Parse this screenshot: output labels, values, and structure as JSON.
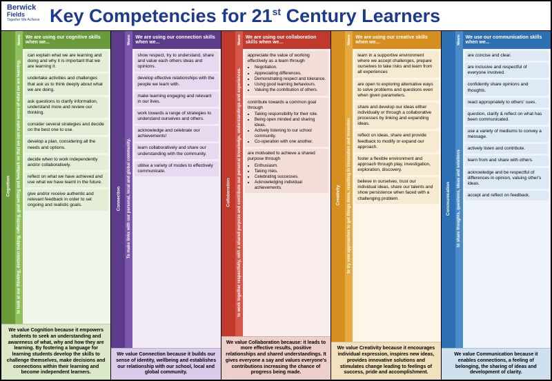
{
  "logo": {
    "line1": "Berwick",
    "line2": "Fields",
    "tag": "Together We Achieve"
  },
  "title_pre": "Key Competencies for 21",
  "title_sup": "st",
  "title_post": " Century Learners",
  "means_label": "Means",
  "competencies": [
    {
      "name": "Cognition",
      "colors": {
        "header": "#6a9a3a",
        "strip": "#8fc15a",
        "body": "#f1f6ea",
        "item": "#e4eed7",
        "footer": "#dce9c8",
        "text": "#ffffff"
      },
      "using": "We are using our cognitive skills when we...",
      "side": "to look at our thinking, decision making, reflecting, goal setting and feedback so that we can make sense of what we are learning.",
      "items": [
        {
          "text": "can explain what we are learning and doing and why it is important that we are learning it."
        },
        {
          "text": "undertake activities and challenges that ask us to think deeply about what we are doing."
        },
        {
          "text": "ask questions to clarify information, understand more and review our thinking."
        },
        {
          "text": "consider several strategies and decide on the best one to use."
        },
        {
          "text": "develop a plan, considering all the needs and options."
        },
        {
          "text": "decide when to work independently and/or collaboratively."
        },
        {
          "text": "reflect on what we have achieved and use what we have learnt in the future."
        },
        {
          "text": "give and/or receive authentic and relevant feedback in order to set ongoing and realistic goals."
        }
      ],
      "footer": "We value Cognition because it empowers students to seek an understanding and awareness of what, why and how they are learning. By fostering a language for learning students develop the skills to challenge themselves, make decisions and connections within their learning and become independent learners."
    },
    {
      "name": "Connection",
      "colors": {
        "header": "#5b3b8a",
        "strip": "#7a57ab",
        "body": "#f2ecf7",
        "item": "#e6daf0",
        "footer": "#dccceb",
        "text": "#ffffff"
      },
      "using": "We are using our connection skills when we...",
      "side": "To make links with our personal, local and global community.",
      "items": [
        {
          "text": "show respect, try to understand, share and value each others ideas and opinions."
        },
        {
          "text": "develop effective relationships with the people we learn with."
        },
        {
          "text": "make learning engaging and relevant in our lives."
        },
        {
          "text": "work towards a range of strategies to understand ourselves and others."
        },
        {
          "text": "acknowledge and celebrate our achievements!"
        },
        {
          "text": "learn collaboratively and share our understanding with the community."
        },
        {
          "text": "utilise a variety of modes to effectively communicate."
        }
      ],
      "footer": "We value Connection because it builds our sense of identity, wellbeing and establishes our relationship with our school, local and global community."
    },
    {
      "name": "Collaboration",
      "colors": {
        "header": "#c0392b",
        "strip": "#d6564a",
        "body": "#faeeec",
        "item": "#f3ddd9",
        "footer": "#eecfc9",
        "text": "#ffffff"
      },
      "using": "We are using our collaboration skills when we...",
      "side": "to work together respectfully, with a shared purpose and contribute our personal knowledge, understandings and experiences.",
      "items": [
        {
          "text": "appreciate the value of working effectively as a team through",
          "bullets": [
            "Negotiation.",
            "Appreciating differences.",
            "Demonstrating respect and tolerance.",
            "Using good learning behaviours.",
            "Valuing the contribution of others."
          ]
        },
        {
          "text": "contribute towards a common goal through",
          "bullets": [
            "Taking responsibility for their role.",
            "Being open minded and sharing ideas.",
            "Actively listening to our school community.",
            "Co-operation with one another."
          ]
        },
        {
          "text": "are motivated to achieve a shared purpose through",
          "bullets": [
            "Enthusiasm.",
            "Taking risks.",
            "Celebrating successes.",
            "Acknowledging individual achievements."
          ]
        }
      ],
      "footer": "We value Collaboration because: it leads to more effective results, positive relationships and shared understandings. It gives everyone a say and values everyone's contributions increasing the chance of progress being made."
    },
    {
      "name": "Creativity",
      "colors": {
        "header": "#d68f1e",
        "strip": "#e6a93e",
        "body": "#fcf5e8",
        "item": "#f6ead1",
        "footer": "#f1e1bd",
        "text": "#ffffff"
      },
      "using": "We are using our creative skills when we...",
      "side": "to try new approaches to get things done, resulting in innovation and invention",
      "items": [
        {
          "text": "learn in a supportive environment where we accept challenges, prepare ourselves to take risks and learn from all experiences"
        },
        {
          "text": "are open to exploring alternative ways to solve problems and questions even when given parameters."
        },
        {
          "text": "share and develop our ideas either individually or through a collaborative processes by linking and expanding ideas."
        },
        {
          "text": "reflect on ideas, share and provide feedback to modify or expand our approach."
        },
        {
          "text": "foster a flexible environment and approach through play, investigation, exploration, discovery."
        },
        {
          "text": "believe in ourselves, trust our individual ideas, share our talents and show persistence when faced with a challenging problem."
        }
      ],
      "footer": "We value Creativity because it encourages individual expression, inspires new ideas, provides innovative solutions and stimulates change leading to feelings of success, pride and accomplishment."
    },
    {
      "name": "Communication",
      "colors": {
        "header": "#2c6fb3",
        "strip": "#4a8cc9",
        "body": "#eef4fa",
        "item": "#dde9f4",
        "footer": "#cfe0ef",
        "text": "#ffffff"
      },
      "using": "We use our communication skills when we...",
      "side": "to share thoughts, questions, ideas and solutions",
      "items": [
        {
          "text": "are concise and clear."
        },
        {
          "text": "are inclusive and respectful of everyone involved."
        },
        {
          "text": "confidently share opinions and thoughts."
        },
        {
          "text": "react appropriately to others' cues."
        },
        {
          "text": "question, clarify & reflect on what has been communicated."
        },
        {
          "text": "use a variety of mediums to convey a message."
        },
        {
          "text": "actively listen and contribute."
        },
        {
          "text": "learn from and share with others."
        },
        {
          "text": "acknowledge and be respectful of differences in opinion, valuing other's ideas."
        },
        {
          "text": "accept and reflect on feedback."
        }
      ],
      "footer": "We value Communication because it enables connections, a feeling of belonging, the sharing of ideas and development of clarity."
    }
  ]
}
